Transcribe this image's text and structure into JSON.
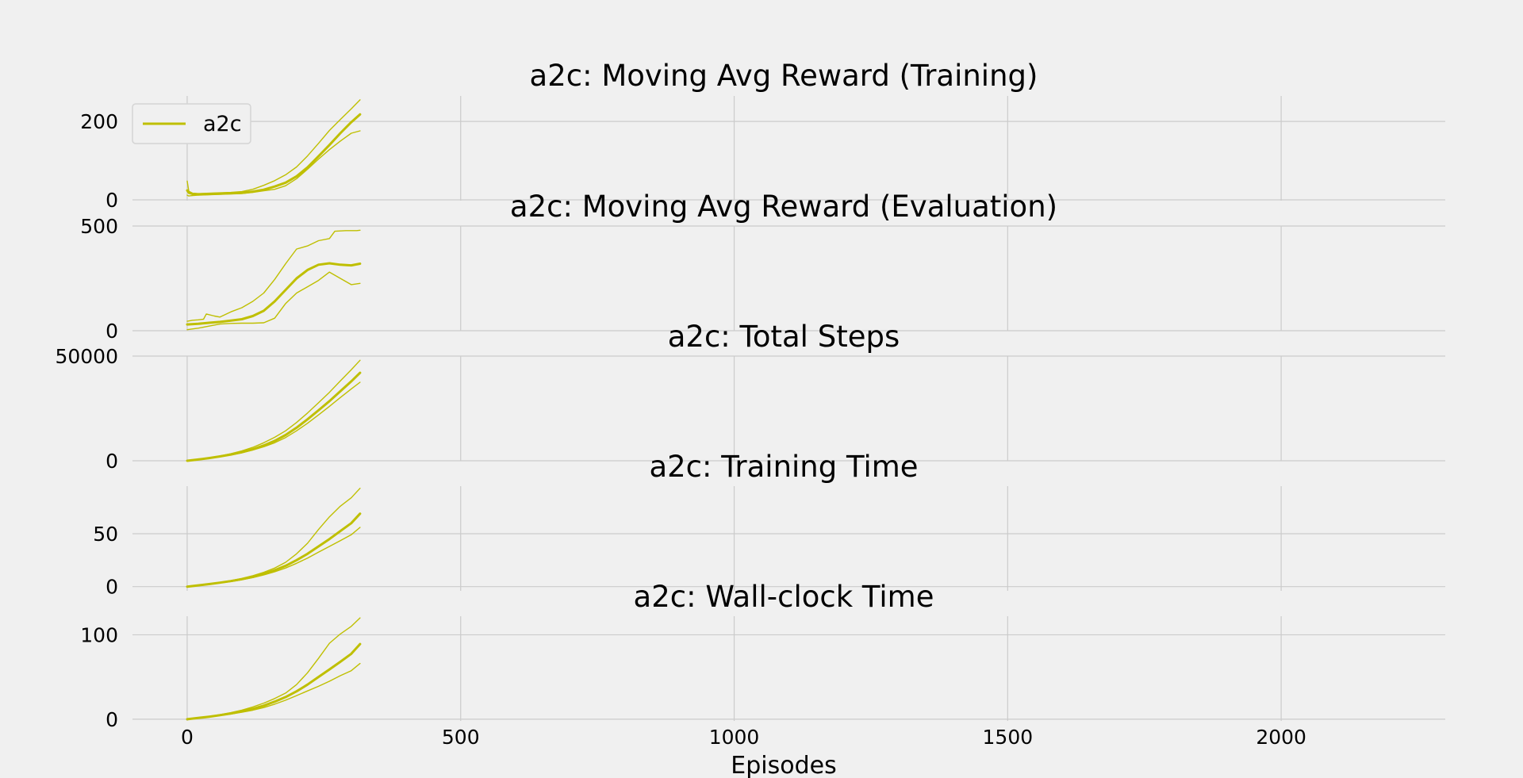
{
  "figure": {
    "xlabel": "Episodes",
    "colors": {
      "line": "#bfbf00",
      "grid": "#cbcbcb",
      "background": "#f0f0f0",
      "text": "#000000"
    },
    "xlim": [
      -100,
      2300
    ],
    "xticks": [
      0,
      500,
      1000,
      1500,
      2000
    ]
  },
  "legend": {
    "label": "a2c",
    "placement": "upper-left"
  },
  "chart_data": [
    {
      "type": "line",
      "title": "a2c: Moving Avg Reward (Training)",
      "ylim": [
        -2,
        265
      ],
      "yticks": [
        0,
        200
      ],
      "series": [
        {
          "name": "a2c",
          "role": "mean",
          "x": [
            0,
            3,
            10,
            20,
            40,
            60,
            80,
            100,
            120,
            140,
            160,
            180,
            200,
            220,
            240,
            260,
            280,
            300,
            316
          ],
          "y": [
            24,
            18,
            15,
            14,
            15,
            16,
            17,
            18,
            21,
            26,
            34,
            44,
            60,
            83,
            111,
            140,
            170,
            198,
            218
          ]
        },
        {
          "role": "upper",
          "x": [
            0,
            3,
            10,
            20,
            40,
            60,
            80,
            100,
            120,
            140,
            160,
            180,
            200,
            220,
            240,
            260,
            280,
            300,
            316
          ],
          "y": [
            48,
            22,
            17,
            16,
            17,
            18,
            19,
            21,
            27,
            37,
            49,
            64,
            84,
            112,
            144,
            177,
            205,
            232,
            255
          ]
        },
        {
          "role": "lower",
          "x": [
            0,
            3,
            10,
            20,
            40,
            60,
            80,
            100,
            120,
            140,
            160,
            180,
            200,
            220,
            240,
            260,
            280,
            300,
            316
          ],
          "y": [
            12,
            10,
            11,
            12,
            13,
            14,
            15,
            16,
            19,
            23,
            27,
            36,
            54,
            78,
            104,
            128,
            150,
            170,
            176
          ]
        }
      ]
    },
    {
      "type": "line",
      "title": "a2c: Moving Avg Reward (Evaluation)",
      "ylim": [
        0,
        500
      ],
      "yticks": [
        0,
        500
      ],
      "series": [
        {
          "name": "a2c",
          "role": "mean",
          "x": [
            0,
            20,
            40,
            60,
            80,
            100,
            120,
            140,
            160,
            180,
            200,
            220,
            240,
            260,
            280,
            300,
            316
          ],
          "y": [
            30,
            33,
            38,
            42,
            48,
            55,
            70,
            95,
            140,
            195,
            250,
            290,
            315,
            322,
            315,
            312,
            320
          ]
        },
        {
          "role": "upper",
          "x": [
            0,
            10,
            20,
            30,
            35,
            50,
            60,
            80,
            100,
            120,
            140,
            160,
            180,
            200,
            220,
            240,
            260,
            270,
            290,
            310,
            316
          ],
          "y": [
            45,
            50,
            52,
            55,
            80,
            70,
            65,
            90,
            110,
            140,
            180,
            245,
            320,
            390,
            405,
            430,
            440,
            475,
            478,
            478,
            480
          ]
        },
        {
          "role": "lower",
          "x": [
            0,
            20,
            40,
            60,
            80,
            100,
            120,
            140,
            160,
            180,
            200,
            220,
            240,
            260,
            280,
            300,
            316
          ],
          "y": [
            5,
            12,
            22,
            32,
            35,
            36,
            36,
            38,
            60,
            130,
            180,
            210,
            240,
            280,
            250,
            220,
            226
          ]
        }
      ]
    },
    {
      "type": "line",
      "title": "a2c: Total Steps",
      "ylim": [
        0,
        50000
      ],
      "yticks": [
        0,
        50000
      ],
      "series": [
        {
          "name": "a2c",
          "role": "mean",
          "x": [
            0,
            20,
            40,
            60,
            80,
            100,
            120,
            140,
            160,
            180,
            200,
            220,
            240,
            260,
            280,
            300,
            316
          ],
          "y": [
            0,
            600,
            1300,
            2100,
            3000,
            4100,
            5500,
            7300,
            9500,
            12300,
            15800,
            19800,
            24100,
            28500,
            33200,
            37900,
            42000
          ]
        },
        {
          "role": "upper",
          "x": [
            0,
            20,
            40,
            60,
            80,
            100,
            120,
            140,
            160,
            180,
            200,
            220,
            240,
            260,
            280,
            300,
            316
          ],
          "y": [
            0,
            650,
            1400,
            2300,
            3400,
            4700,
            6400,
            8600,
            11200,
            14300,
            18300,
            22800,
            27700,
            32700,
            38100,
            43500,
            48000
          ]
        },
        {
          "role": "lower",
          "x": [
            0,
            20,
            40,
            60,
            80,
            100,
            120,
            140,
            160,
            180,
            200,
            220,
            240,
            260,
            280,
            300,
            316
          ],
          "y": [
            0,
            550,
            1200,
            1950,
            2800,
            3800,
            5100,
            6700,
            8600,
            11100,
            14300,
            17900,
            21900,
            26000,
            30200,
            34300,
            37500
          ]
        }
      ]
    },
    {
      "type": "line",
      "title": "a2c: Training Time",
      "ylim": [
        -4,
        95
      ],
      "yticks": [
        0,
        50
      ],
      "series": [
        {
          "name": "a2c",
          "role": "mean",
          "x": [
            0,
            20,
            40,
            60,
            80,
            100,
            120,
            140,
            160,
            180,
            200,
            220,
            240,
            260,
            280,
            300,
            316
          ],
          "y": [
            0,
            1.2,
            2.4,
            3.7,
            5.2,
            7.0,
            9.2,
            12.0,
            15.5,
            19.7,
            25.0,
            31.0,
            38.0,
            45.0,
            52.5,
            60.0,
            69.0
          ]
        },
        {
          "role": "upper",
          "x": [
            0,
            20,
            40,
            60,
            80,
            100,
            120,
            140,
            160,
            180,
            200,
            220,
            240,
            260,
            280,
            300,
            316
          ],
          "y": [
            0,
            1.3,
            2.6,
            4.0,
            5.7,
            7.8,
            10.3,
            13.5,
            17.5,
            23.0,
            31.0,
            41.0,
            54.0,
            66.0,
            76.0,
            84.0,
            93.0
          ]
        },
        {
          "role": "lower",
          "x": [
            0,
            20,
            40,
            60,
            80,
            100,
            120,
            140,
            160,
            180,
            200,
            220,
            240,
            260,
            280,
            300,
            316
          ],
          "y": [
            0,
            1.1,
            2.2,
            3.4,
            4.8,
            6.5,
            8.5,
            11.0,
            14.0,
            17.6,
            22.0,
            27.0,
            32.5,
            38.0,
            43.5,
            49.0,
            56.0
          ]
        }
      ]
    },
    {
      "type": "line",
      "title": "a2c: Wall-clock Time",
      "ylim": [
        -2,
        122
      ],
      "yticks": [
        0,
        100
      ],
      "series": [
        {
          "name": "a2c",
          "role": "mean",
          "x": [
            0,
            20,
            40,
            60,
            80,
            100,
            120,
            140,
            160,
            180,
            200,
            220,
            240,
            260,
            280,
            300,
            316
          ],
          "y": [
            0,
            1.5,
            3.0,
            4.8,
            6.8,
            9.3,
            12.3,
            16.0,
            20.8,
            26.3,
            33.0,
            41.0,
            50.0,
            59.0,
            68.0,
            77.5,
            89.0
          ]
        },
        {
          "role": "upper",
          "x": [
            0,
            20,
            40,
            60,
            80,
            100,
            120,
            140,
            160,
            180,
            200,
            220,
            240,
            260,
            280,
            300,
            316
          ],
          "y": [
            0,
            1.6,
            3.3,
            5.4,
            7.8,
            10.8,
            14.5,
            19.0,
            24.5,
            31.0,
            41.0,
            55.0,
            72.0,
            90.0,
            101.0,
            110.0,
            120.0
          ]
        },
        {
          "role": "lower",
          "x": [
            0,
            20,
            40,
            60,
            80,
            100,
            120,
            140,
            160,
            180,
            200,
            220,
            240,
            260,
            280,
            300,
            316
          ],
          "y": [
            0,
            1.4,
            2.8,
            4.4,
            6.2,
            8.2,
            10.7,
            13.8,
            17.8,
            22.5,
            28.0,
            33.5,
            39.0,
            45.0,
            51.5,
            57.5,
            66.0
          ]
        }
      ]
    }
  ]
}
